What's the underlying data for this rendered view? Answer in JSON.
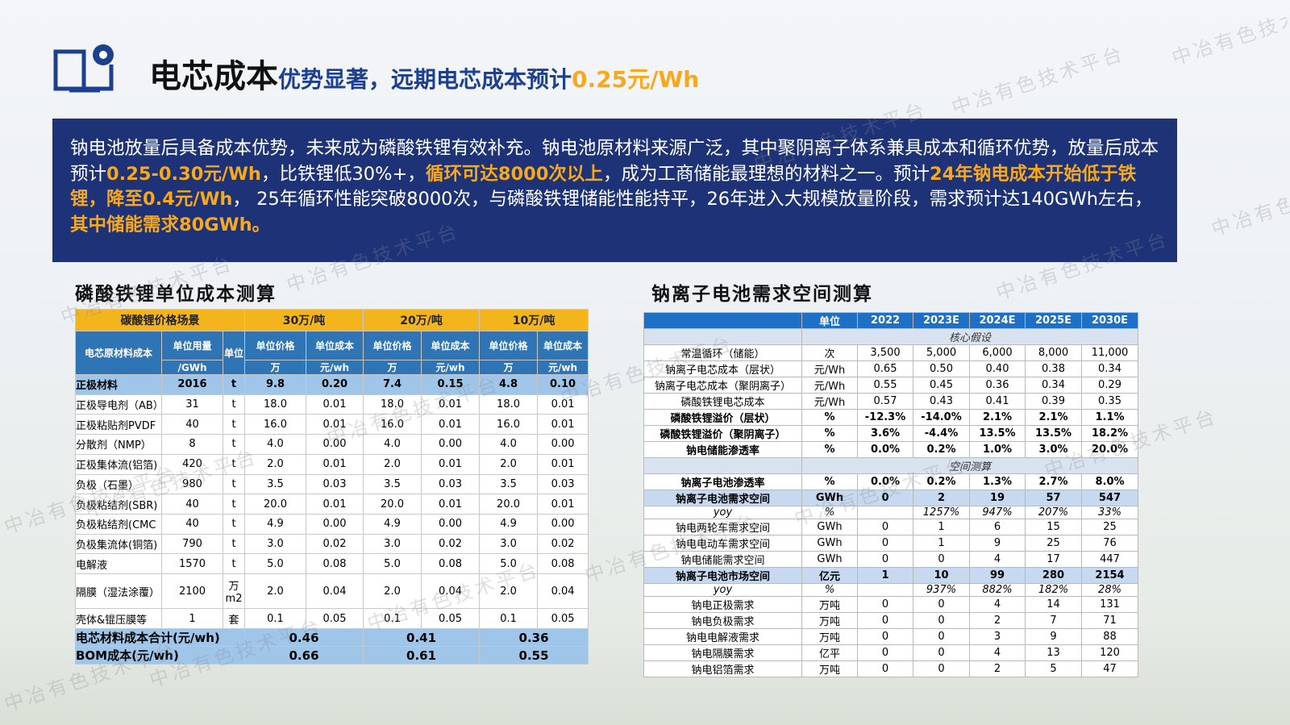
{
  "header": {
    "title_main": "电芯成本",
    "title_sub": "优势显著，远期电芯成本预计",
    "title_hl": "0.25元/Wh"
  },
  "summary": [
    {
      "text": "钠电池放量后具备成本优势，未来成为磷酸铁锂有效补充。钠电池原材料来源广泛，其中聚阴离子体系兼具成本和循环优势，放量后成本预计",
      "highlight": false
    },
    {
      "text": "0.25-0.30元/Wh",
      "highlight": true
    },
    {
      "text": "，比铁锂低30%+，",
      "highlight": false
    },
    {
      "text": "循环可达8000次以上",
      "highlight": true
    },
    {
      "text": "，成为工商储能最理想的材料之一。预计",
      "highlight": false
    },
    {
      "text": "24年钠电成本开始低于铁锂，降至0.4元/Wh",
      "highlight": true
    },
    {
      "text": "， 25年循环性能突破8000次，与磷酸铁锂储能性能持平，26年进入大规模放量阶段，需求预计达140GWh左右，",
      "highlight": false
    },
    {
      "text": "其中储能需求80GWh。",
      "highlight": true
    }
  ],
  "left_table": {
    "title": "磷酸铁锂单位成本测算",
    "header": {
      "scenario": "碳酸锂价格场景",
      "prices": [
        "30万/吨",
        "20万/吨",
        "10万/吨"
      ],
      "material": "电芯原材料成本",
      "usage": "单位用量",
      "usage_unit": "/GWh",
      "unit": "单位",
      "price": "单位价格",
      "cost": "单位成本",
      "price_unit": "万",
      "cost_unit": "元/wh"
    },
    "rows": [
      {
        "cells": [
          "正极材料",
          "2016",
          "t",
          "9.8",
          "0.20",
          "7.4",
          "0.15",
          "4.8",
          "0.10"
        ],
        "highlight": true
      },
      {
        "cells": [
          "正极导电剂（AB）",
          "31",
          "t",
          "18.0",
          "0.01",
          "18.0",
          "0.01",
          "18.0",
          "0.01"
        ]
      },
      {
        "cells": [
          "正极粘贴剂PVDF",
          "40",
          "t",
          "16.0",
          "0.01",
          "16.0",
          "0.01",
          "16.0",
          "0.01"
        ]
      },
      {
        "cells": [
          "分散剂（NMP）",
          "8",
          "t",
          "4.0",
          "0.00",
          "4.0",
          "0.00",
          "4.0",
          "0.00"
        ]
      },
      {
        "cells": [
          "正极集体流(铝箔)",
          "420",
          "t",
          "2.0",
          "0.01",
          "2.0",
          "0.01",
          "2.0",
          "0.01"
        ]
      },
      {
        "cells": [
          "负极（石墨）",
          "980",
          "t",
          "3.5",
          "0.03",
          "3.5",
          "0.03",
          "3.5",
          "0.03"
        ]
      },
      {
        "cells": [
          "负极粘结剂(SBR)",
          "40",
          "t",
          "20.0",
          "0.01",
          "20.0",
          "0.01",
          "20.0",
          "0.01"
        ]
      },
      {
        "cells": [
          "负极粘结剂(CMC",
          "40",
          "t",
          "4.9",
          "0.00",
          "4.9",
          "0.00",
          "4.9",
          "0.00"
        ]
      },
      {
        "cells": [
          "负极集流体(铜箔)",
          "790",
          "t",
          "3.0",
          "0.02",
          "3.0",
          "0.02",
          "3.0",
          "0.02"
        ]
      },
      {
        "cells": [
          "电解液",
          "1570",
          "t",
          "5.0",
          "0.08",
          "5.0",
          "0.08",
          "5.0",
          "0.08"
        ]
      },
      {
        "cells": [
          "隔膜（湿法涂覆）",
          "2100",
          "万m2",
          "2.0",
          "0.04",
          "2.0",
          "0.04",
          "2.0",
          "0.04"
        ]
      },
      {
        "cells": [
          "壳体&锟压膜等",
          "1",
          "套",
          "0.1",
          "0.05",
          "0.1",
          "0.05",
          "0.1",
          "0.05"
        ]
      }
    ],
    "footer": [
      {
        "label": "电芯材料成本合计(元/wh)",
        "values": [
          "0.46",
          "0.41",
          "0.36"
        ]
      },
      {
        "label": "BOM成本(元/wh)",
        "values": [
          "0.66",
          "0.61",
          "0.55"
        ]
      }
    ]
  },
  "right_table": {
    "title": "钠离子电池需求空间测算",
    "columns": [
      "单位",
      "2022",
      "2023E",
      "2024E",
      "2025E",
      "2030E"
    ],
    "rows": [
      {
        "section": "核心假设"
      },
      {
        "cells": [
          "常温循环（储能）",
          "次",
          "3,500",
          "5,000",
          "6,000",
          "8,000",
          "11,000"
        ]
      },
      {
        "cells": [
          "钠离子电芯成本（层状）",
          "元/Wh",
          "0.65",
          "0.50",
          "0.40",
          "0.38",
          "0.34"
        ]
      },
      {
        "cells": [
          "钠离子电芯成本（聚阴离子）",
          "元/Wh",
          "0.55",
          "0.45",
          "0.36",
          "0.34",
          "0.29"
        ]
      },
      {
        "cells": [
          "磷酸铁锂电芯成本",
          "元/Wh",
          "0.57",
          "0.43",
          "0.41",
          "0.39",
          "0.35"
        ]
      },
      {
        "cells": [
          "磷酸铁锂溢价（层状）",
          "%",
          "-12.3%",
          "-14.0%",
          "2.1%",
          "2.1%",
          "1.1%"
        ],
        "bold": true
      },
      {
        "cells": [
          "磷酸铁锂溢价（聚阴离子）",
          "%",
          "3.6%",
          "-4.4%",
          "13.5%",
          "13.5%",
          "18.2%"
        ],
        "bold": true
      },
      {
        "cells": [
          "钠电储能渗透率",
          "%",
          "0.0%",
          "0.2%",
          "1.0%",
          "3.0%",
          "20.0%"
        ],
        "bold": true
      },
      {
        "section": "空间测算"
      },
      {
        "cells": [
          "钠离子电池渗透率",
          "%",
          "0.0%",
          "0.2%",
          "1.3%",
          "2.7%",
          "8.0%"
        ],
        "bold": true
      },
      {
        "cells": [
          "钠离子电池需求空间",
          "GWh",
          "0",
          "2",
          "19",
          "57",
          "547"
        ],
        "bold": true,
        "highlight": true
      },
      {
        "cells": [
          "yoy",
          "%",
          null,
          "1257%",
          "947%",
          "207%",
          "33%"
        ],
        "italic": true
      },
      {
        "cells": [
          "钠电两轮车需求空间",
          "GWh",
          "0",
          "1",
          "6",
          "15",
          "25"
        ]
      },
      {
        "cells": [
          "钠电电动车需求空间",
          "GWh",
          "0",
          "1",
          "9",
          "25",
          "76"
        ]
      },
      {
        "cells": [
          "钠电储能需求空间",
          "GWh",
          "0",
          "0",
          "4",
          "17",
          "447"
        ]
      },
      {
        "cells": [
          "钠离子电池市场空间",
          "亿元",
          "1",
          "10",
          "99",
          "280",
          "2154"
        ],
        "bold": true,
        "highlight": true
      },
      {
        "cells": [
          "yoy",
          "%",
          null,
          "937%",
          "882%",
          "182%",
          "28%"
        ],
        "italic": true
      },
      {
        "cells": [
          "钠电正极需求",
          "万吨",
          "0",
          "0",
          "4",
          "14",
          "131"
        ]
      },
      {
        "cells": [
          "钠电负极需求",
          "万吨",
          "0",
          "0",
          "2",
          "7",
          "71"
        ]
      },
      {
        "cells": [
          "钠电电解液需求",
          "万吨",
          "0",
          "0",
          "3",
          "9",
          "88"
        ]
      },
      {
        "cells": [
          "钠电隔膜需求",
          "亿平",
          "0",
          "0",
          "4",
          "13",
          "120"
        ]
      },
      {
        "cells": [
          "钠电铝箔需求",
          "万吨",
          "0",
          "0",
          "2",
          "5",
          "47"
        ]
      }
    ]
  },
  "watermark": "中冶有色技术平台"
}
